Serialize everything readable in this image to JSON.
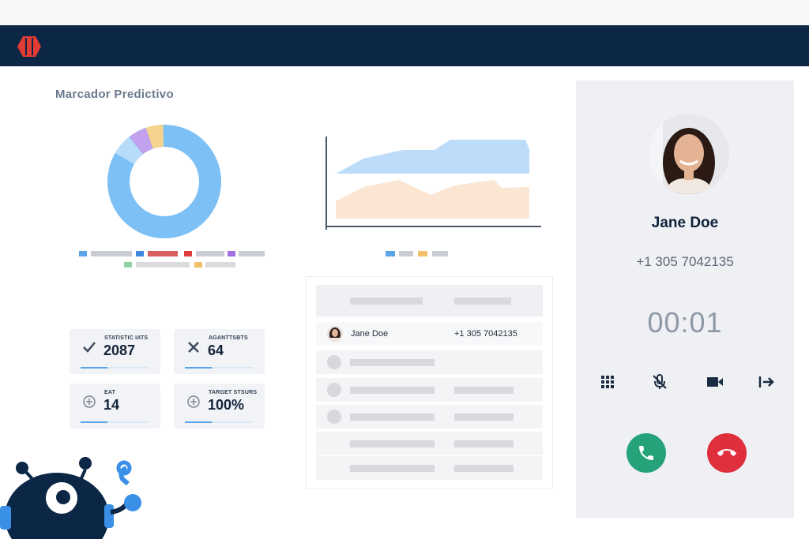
{
  "header": {
    "logo_icon": "brand-logo-icon",
    "brand_color": "#0c2646",
    "logo_color": "#e23b33"
  },
  "dashboard": {
    "title": "Marcador Predictivo"
  },
  "stats": [
    {
      "label": "STATISTIC IATS",
      "value": "2087",
      "icon": "check-icon"
    },
    {
      "label": "AGANTTSBTS",
      "value": "64",
      "icon": "x-icon"
    },
    {
      "label": "EAT",
      "value": "14",
      "icon": "plus-circle-icon"
    },
    {
      "label": "TARGET STSURS",
      "value": "100%",
      "icon": "plus-circle-icon"
    }
  ],
  "contacts": {
    "rows": [
      {
        "name": "Jane Doe",
        "phone": "+1 305 7042135"
      }
    ]
  },
  "call": {
    "caller_name": "Jane Doe",
    "caller_phone": "+1 305 7042135",
    "timer": "00:01",
    "controls": [
      "keypad-icon",
      "mute-icon",
      "video-icon",
      "transfer-icon"
    ],
    "answer_color": "#25a27a",
    "hangup_color": "#e02f3c"
  }
}
